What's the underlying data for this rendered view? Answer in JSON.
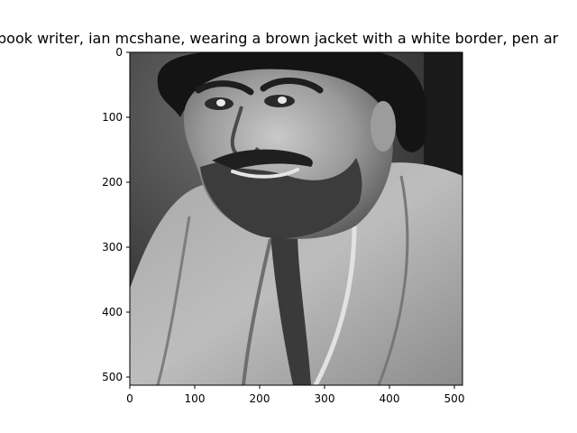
{
  "figure": {
    "title": "book writer, ian mcshane, wearing a brown jacket with a white border, pen ar",
    "image_description": "grayscale portrait photo of a smiling bearded man with curly dark hair wearing a light robe-style jacket"
  },
  "chart_data": {
    "type": "image",
    "title": "book writer, ian mcshane, wearing a brown jacket with a white border, pen ar",
    "xlim": [
      0,
      511
    ],
    "ylim": [
      511,
      0
    ],
    "x_ticks": [
      "0",
      "100",
      "200",
      "300",
      "400",
      "500"
    ],
    "y_ticks": [
      "0",
      "100",
      "200",
      "300",
      "400",
      "500"
    ],
    "grid": false
  }
}
